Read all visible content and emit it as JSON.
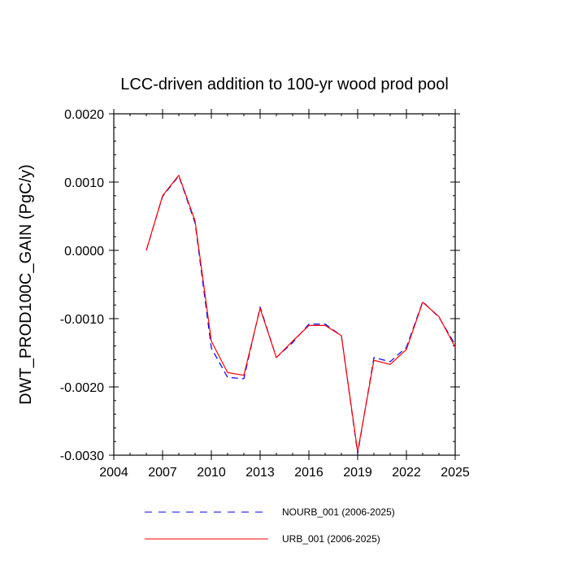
{
  "chart_data": {
    "type": "line",
    "title": "LCC-driven addition to 100-yr wood prod pool",
    "xlabel": "",
    "ylabel": "DWT_PROD100C_GAIN  (PgC/y)",
    "xlim": [
      2004,
      2025
    ],
    "ylim": [
      -0.003,
      0.002
    ],
    "x_ticks": [
      2004,
      2007,
      2010,
      2013,
      2016,
      2019,
      2022,
      2025
    ],
    "x_tick_labels": [
      "2004",
      "2007",
      "2010",
      "2013",
      "2016",
      "2019",
      "2022",
      "2025"
    ],
    "y_ticks": [
      -0.003,
      -0.002,
      -0.001,
      0.0,
      0.001,
      0.002
    ],
    "y_tick_labels": [
      "-0.0030",
      "-0.0020",
      "-0.0010",
      "0.0000",
      "0.0010",
      "0.0020"
    ],
    "grid": false,
    "legend_position": "bottom",
    "x": [
      2006,
      2007,
      2008,
      2009,
      2010,
      2011,
      2012,
      2013,
      2014,
      2015,
      2016,
      2017,
      2018,
      2019,
      2020,
      2021,
      2022,
      2023,
      2024,
      2025
    ],
    "series": [
      {
        "name": "NOURB_001 (2006-2025)",
        "color": "#0000ff",
        "dash": "dashed",
        "values": [
          0.0,
          0.00079,
          0.00109,
          0.0004,
          -0.00143,
          -0.00186,
          -0.00188,
          -0.00083,
          -0.00157,
          -0.00135,
          -0.00108,
          -0.00108,
          -0.00125,
          -0.00298,
          -0.00157,
          -0.00163,
          -0.00142,
          -0.00075,
          -0.00098,
          -0.00138
        ]
      },
      {
        "name": "URB_001 (2006-2025)",
        "color": "#ff0000",
        "dash": "solid",
        "values": [
          0.0,
          0.0008,
          0.0011,
          0.00043,
          -0.00133,
          -0.00179,
          -0.00183,
          -0.00085,
          -0.00157,
          -0.00133,
          -0.0011,
          -0.0011,
          -0.00125,
          -0.00295,
          -0.00161,
          -0.00167,
          -0.00145,
          -0.00076,
          -0.00097,
          -0.00142
        ]
      }
    ]
  }
}
